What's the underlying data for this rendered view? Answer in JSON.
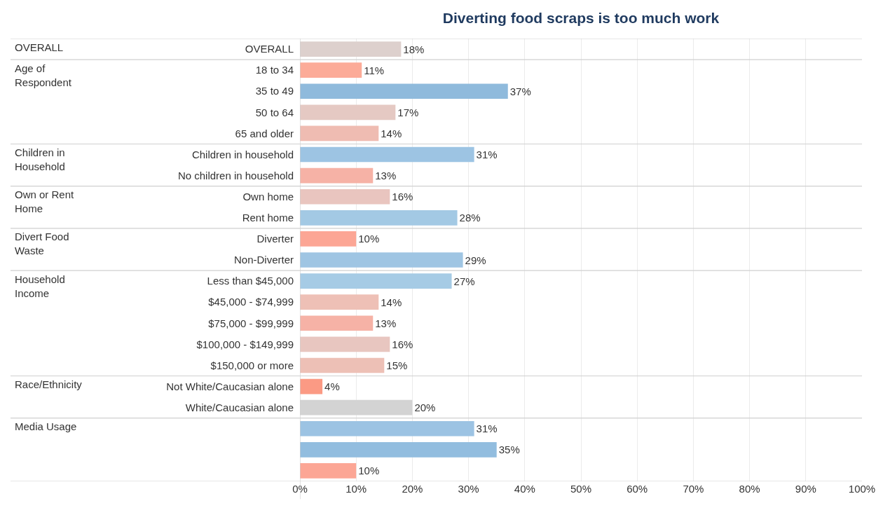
{
  "chart_data": {
    "type": "bar",
    "orientation": "horizontal",
    "title": "Diverting food scraps is too much work",
    "categories": [
      "OVERALL",
      "18 to 34",
      "35 to 49",
      "50 to 64",
      "65 and older",
      "Children in household",
      "No children in household",
      "Own home",
      "Rent home",
      "Diverter",
      "Non-Diverter",
      "Less than $45,000",
      "$45,000 - $74,999",
      "$75,000 - $99,999",
      "$100,000 - $149,999",
      "$150,000 or more",
      "Not White/Caucasian alone",
      "White/Caucasian alone",
      null,
      null,
      null
    ],
    "values": [
      18,
      11,
      37,
      17,
      14,
      31,
      13,
      16,
      28,
      10,
      29,
      27,
      14,
      13,
      16,
      15,
      4,
      20,
      31,
      35,
      10
    ],
    "value_labels": [
      "18%",
      "11%",
      "37%",
      "17%",
      "14%",
      "31%",
      "13%",
      "16%",
      "28%",
      "10%",
      "29%",
      "27%",
      "14%",
      "13%",
      "16%",
      "15%",
      "4%",
      "20%",
      "31%",
      "35%",
      "10%"
    ],
    "colors": [
      "#ddd0cd",
      "#fcab98",
      "#8fbadc",
      "#e5c9c3",
      "#efbcb2",
      "#9dc4e3",
      "#f6b2a6",
      "#e9c5bf",
      "#a3c9e4",
      "#fca695",
      "#9fc5e3",
      "#a6cbe5",
      "#eec0b6",
      "#f6b2a6",
      "#e8c6c0",
      "#edc0b6",
      "#fb9a84",
      "#d3d3d3",
      "#9cc3e3",
      "#92bddf",
      "#fca695"
    ],
    "xlim": [
      0,
      100
    ],
    "xticks": [
      {
        "value": 0,
        "label": "0%"
      },
      {
        "value": 10,
        "label": "10%"
      },
      {
        "value": 20,
        "label": "20%"
      },
      {
        "value": 30,
        "label": "30%"
      },
      {
        "value": 40,
        "label": "40%"
      },
      {
        "value": 50,
        "label": "50%"
      },
      {
        "value": 60,
        "label": "60%"
      },
      {
        "value": 70,
        "label": "70%"
      },
      {
        "value": 80,
        "label": "80%"
      },
      {
        "value": 90,
        "label": "90%"
      },
      {
        "value": 100,
        "label": "100%"
      }
    ],
    "grid": "x",
    "annotations": [
      "OVERALL",
      "Age of Respondent",
      "Children in Household",
      "Own or Rent Home",
      "Divert Food Waste",
      "Household Income",
      "Race/Ethnicity",
      "Media Usage"
    ]
  }
}
